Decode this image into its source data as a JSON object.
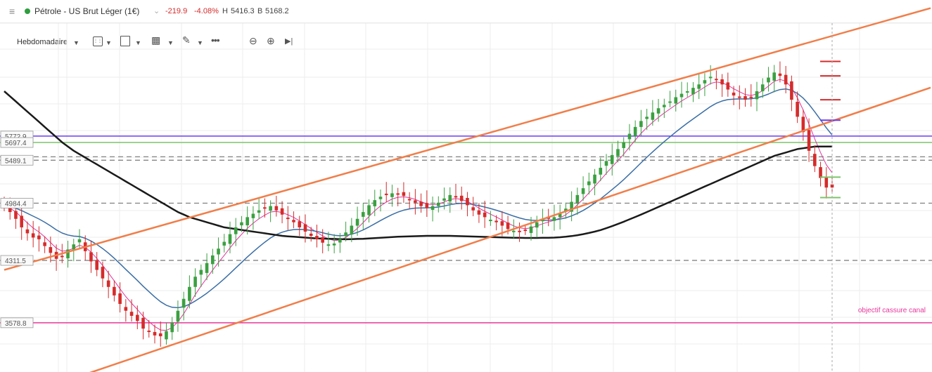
{
  "header": {
    "menu_icon": "hamburger-icon",
    "status_dot_color": "#2e9e3e",
    "instrument": "Pétrole - US Brut Léger (1€)",
    "change": "-219.9",
    "change_pct": "-4.08%",
    "high_label": "H",
    "high_value": "5416.3",
    "bid_label": "B",
    "bid_value": "5168.2",
    "change_color": "#d62b2b"
  },
  "toolbar": {
    "timeframe": "Hebdomadaire",
    "icons": [
      "calendar-grid-icon",
      "chart-type-icon",
      "indicators-icon",
      "draw-icon",
      "more-icon",
      "zoom-out-icon",
      "zoom-in-icon",
      "play-icon"
    ]
  },
  "colors": {
    "up": "#3aa040",
    "down": "#d62b2b",
    "channel": "#f07e4a",
    "ma_black": "#1a1a1a",
    "ma_blue": "#3a6ea5",
    "ma_pink": "#e0359d",
    "purple_line": "#6a3df2",
    "green_line": "#7cc46a",
    "target_line": "#e8369b"
  },
  "chart_data": {
    "type": "candlestick",
    "ylim": [
      3000,
      7100
    ],
    "price_labels": [
      "5772.9",
      "5697.4",
      "5489.1",
      "4984.4",
      "4311.5",
      "3578.8"
    ],
    "horizontal_levels": [
      {
        "value": 5772.9,
        "style": "purple"
      },
      {
        "value": 5697.4,
        "style": "green"
      },
      {
        "value": 5530,
        "style": "dashed"
      },
      {
        "value": 5489.1,
        "style": "dashed"
      },
      {
        "value": 4984.4,
        "style": "dashed"
      },
      {
        "value": 4311.5,
        "style": "dashed"
      },
      {
        "value": 3578.8,
        "style": "target"
      }
    ],
    "annotation": "objectif cassure canal",
    "channel_lines": [
      {
        "name": "upper",
        "start": {
          "bar": 0,
          "value": 4200
        },
        "end": {
          "bar": 143,
          "value": 6950
        }
      },
      {
        "name": "lower",
        "start": {
          "bar": 13,
          "value": 2950
        },
        "end": {
          "bar": 143,
          "value": 5950
        }
      }
    ],
    "current_price": 5168.2,
    "right_markers": [
      {
        "value": 6650,
        "color": "red"
      },
      {
        "value": 6480,
        "color": "red"
      },
      {
        "value": 6200,
        "color": "red"
      },
      {
        "value": 5960,
        "color": "purple"
      },
      {
        "value": 5290,
        "color": "green"
      },
      {
        "value": 5050,
        "color": "green"
      }
    ],
    "closes": [
      4950,
      4880,
      4800,
      4700,
      4630,
      4580,
      4560,
      4480,
      4400,
      4330,
      4360,
      4440,
      4500,
      4560,
      4420,
      4300,
      4200,
      4100,
      4000,
      3900,
      3800,
      3720,
      3660,
      3600,
      3510,
      3470,
      3430,
      3420,
      3480,
      3580,
      3720,
      3860,
      4000,
      4120,
      4200,
      4280,
      4370,
      4450,
      4530,
      4620,
      4700,
      4760,
      4820,
      4860,
      4900,
      4920,
      4950,
      4900,
      4850,
      4800,
      4760,
      4700,
      4650,
      4600,
      4560,
      4520,
      4500,
      4510,
      4560,
      4640,
      4720,
      4800,
      4880,
      4960,
      5020,
      5060,
      5080,
      5100,
      5090,
      5070,
      5030,
      4990,
      4950,
      4930,
      4950,
      4990,
      5040,
      5080,
      5060,
      5010,
      4960,
      4900,
      4850,
      4820,
      4790,
      4760,
      4720,
      4680,
      4660,
      4650,
      4670,
      4710,
      4760,
      4790,
      4800,
      4820,
      4860,
      4920,
      5000,
      5080,
      5160,
      5240,
      5320,
      5400,
      5480,
      5550,
      5620,
      5700,
      5800,
      5880,
      5950,
      6000,
      6050,
      6100,
      6140,
      6180,
      6230,
      6270,
      6300,
      6340,
      6380,
      6430,
      6470,
      6440,
      6380,
      6320,
      6250,
      6230,
      6200,
      6230,
      6300,
      6380,
      6460,
      6520,
      6480,
      6380,
      6200,
      6000,
      5820,
      5600,
      5420,
      5280,
      5168,
      5168
    ],
    "ma_black": [
      6300,
      6240,
      6180,
      6120,
      6060,
      6000,
      5940,
      5880,
      5820,
      5760,
      5700,
      5650,
      5600,
      5560,
      5520,
      5480,
      5440,
      5400,
      5360,
      5320,
      5280,
      5240,
      5200,
      5160,
      5120,
      5080,
      5040,
      5000,
      4960,
      4920,
      4880,
      4850,
      4820,
      4800,
      4780,
      4760,
      4740,
      4720,
      4700,
      4690,
      4680,
      4670,
      4660,
      4650,
      4640,
      4630,
      4620,
      4610,
      4600,
      4595,
      4590,
      4585,
      4580,
      4575,
      4570,
      4568,
      4566,
      4564,
      4562,
      4560,
      4562,
      4564,
      4566,
      4570,
      4574,
      4578,
      4582,
      4586,
      4590,
      4592,
      4594,
      4596,
      4598,
      4600,
      4600,
      4600,
      4600,
      4600,
      4598,
      4596,
      4594,
      4592,
      4590,
      4588,
      4586,
      4584,
      4582,
      4580,
      4578,
      4577,
      4576,
      4576,
      4576,
      4577,
      4578,
      4580,
      4584,
      4590,
      4598,
      4608,
      4620,
      4634,
      4650,
      4668,
      4690,
      4714,
      4740,
      4766,
      4794,
      4822,
      4850,
      4880,
      4910,
      4940,
      4970,
      5000,
      5030,
      5060,
      5090,
      5120,
      5150,
      5180,
      5210,
      5240,
      5270,
      5300,
      5330,
      5360,
      5390,
      5420,
      5450,
      5480,
      5510,
      5540,
      5560,
      5580,
      5600,
      5620,
      5630,
      5640,
      5650,
      5650,
      5650,
      5650
    ]
  }
}
